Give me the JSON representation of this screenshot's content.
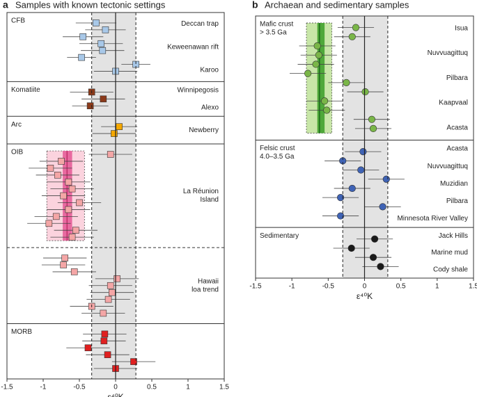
{
  "chart_data": [
    {
      "type": "dotplot",
      "panel": "a",
      "title": "Samples with known tectonic settings",
      "xlabel": "ε⁴⁰K",
      "xlim": [
        -1.5,
        1.5
      ],
      "xticks": [
        -1.5,
        -1,
        -0.5,
        0,
        0.5,
        1,
        1.5
      ],
      "marker": "square",
      "band": [
        -0.33,
        0.28
      ],
      "band_color": "#e3e3e3",
      "groups": [
        {
          "label": [
            "CFB"
          ],
          "color": "#a8c8e8",
          "names": [
            [
              "Deccan trap"
            ],
            [
              "Keweenawan rift"
            ],
            [
              "Karoo"
            ]
          ],
          "points": [
            {
              "x": -0.27,
              "err": 0.28
            },
            {
              "x": -0.14,
              "err": 0.28
            },
            {
              "x": -0.45,
              "err": 0.28
            },
            {
              "x": -0.2,
              "err": 0.3
            },
            {
              "x": -0.18,
              "err": 0.3
            },
            {
              "x": -0.47,
              "err": 0.2
            },
            {
              "x": 0.28,
              "err": 0.2
            },
            {
              "x": 0.0,
              "err": 0.3
            }
          ]
        },
        {
          "label": [
            "Komatiite"
          ],
          "color": "#8b3a1a",
          "names": [
            [
              "Winnipegosis"
            ],
            [
              "Alexo"
            ]
          ],
          "points": [
            {
              "x": -0.33,
              "err": 0.3
            },
            {
              "x": -0.17,
              "err": 0.3
            },
            {
              "x": -0.35,
              "err": 0.25
            }
          ]
        },
        {
          "label": [
            "Arc"
          ],
          "color": "#f5a800",
          "names": [
            [
              "Newberry"
            ]
          ],
          "points": [
            {
              "x": 0.05,
              "err": 0.25
            },
            {
              "x": -0.02,
              "err": 0.3
            }
          ]
        },
        {
          "label": [
            "OIB"
          ],
          "color": "#f4a6a6",
          "names": [
            [
              "La Réunion",
              "Island"
            ]
          ],
          "mean_band": {
            "lo": -0.95,
            "hi": -0.43,
            "inner_lo": -0.73,
            "inner_hi": -0.6,
            "mean": -0.67,
            "light": "#fbd3de",
            "dark": "#e86aa0",
            "line": "#c0306a"
          },
          "points": [
            {
              "x": -0.07,
              "err": 0.3
            },
            {
              "x": -0.75,
              "err": 0.3
            },
            {
              "x": -0.9,
              "err": 0.3
            },
            {
              "x": -0.8,
              "err": 0.3
            },
            {
              "x": -0.65,
              "err": 0.3
            },
            {
              "x": -0.6,
              "err": 0.3
            },
            {
              "x": -0.72,
              "err": 0.3
            },
            {
              "x": -0.5,
              "err": 0.3
            },
            {
              "x": -0.65,
              "err": 0.3
            },
            {
              "x": -0.82,
              "err": 0.3
            },
            {
              "x": -0.92,
              "err": 0.3
            },
            {
              "x": -0.55,
              "err": 0.3
            },
            {
              "x": -0.6,
              "err": 0.3
            }
          ]
        },
        {
          "dashed_top": true,
          "color": "#f4a6a6",
          "names": [
            [
              "Hawaii",
              "loa trend"
            ]
          ],
          "points": [
            {
              "x": -0.7,
              "err": 0.3
            },
            {
              "x": -0.72,
              "err": 0.3
            },
            {
              "x": -0.57,
              "err": 0.3
            },
            {
              "x": 0.02,
              "err": 0.3
            },
            {
              "x": -0.07,
              "err": 0.3
            },
            {
              "x": -0.05,
              "err": 0.3
            },
            {
              "x": -0.1,
              "err": 0.3
            },
            {
              "x": -0.33,
              "err": 0.3
            },
            {
              "x": -0.17,
              "err": 0.3
            }
          ]
        },
        {
          "label": [
            "MORB"
          ],
          "color": "#e02020",
          "names": [],
          "points": [
            {
              "x": -0.15,
              "err": 0.3
            },
            {
              "x": -0.16,
              "err": 0.3
            },
            {
              "x": -0.38,
              "err": 0.3
            },
            {
              "x": -0.11,
              "err": 0.3
            },
            {
              "x": 0.25,
              "err": 0.3
            },
            {
              "x": 0.0,
              "err": 0.3
            }
          ]
        }
      ]
    },
    {
      "type": "dotplot",
      "panel": "b",
      "title": "Archaean and sedimentary samples",
      "xlabel": "ε⁴⁰K",
      "xlim": [
        -1.5,
        1.5
      ],
      "xticks": [
        -1.5,
        -1,
        -0.5,
        0,
        0.5,
        1,
        1.5
      ],
      "marker": "circle",
      "band": [
        -0.3,
        0.32
      ],
      "band_color": "#e3e3e3",
      "groups": [
        {
          "label": [
            "Mafic crust",
            "> 3.5 Ga"
          ],
          "color": "#7ab648",
          "names": [
            [
              "Isua"
            ],
            [
              "Nuvvuagittuq"
            ],
            [
              "Pilbara"
            ],
            [
              "Kaapvaal"
            ],
            [
              "Acasta"
            ]
          ],
          "mean_band": {
            "lo": -0.8,
            "hi": -0.45,
            "inner_lo": -0.65,
            "inner_hi": -0.55,
            "mean": -0.62,
            "light": "#c8e6a8",
            "dark": "#4fa83a",
            "line": "#1d6b1d"
          },
          "points": [
            {
              "x": -0.12,
              "err": 0.25
            },
            {
              "x": -0.17,
              "err": 0.25
            },
            {
              "x": -0.65,
              "err": 0.25
            },
            {
              "x": -0.63,
              "err": 0.25
            },
            {
              "x": -0.67,
              "err": 0.25
            },
            {
              "x": -0.78,
              "err": 0.25
            },
            {
              "x": -0.25,
              "err": 0.25
            },
            {
              "x": 0.01,
              "err": 0.25
            },
            {
              "x": -0.55,
              "err": 0.25
            },
            {
              "x": -0.52,
              "err": 0.25
            },
            {
              "x": 0.1,
              "err": 0.25
            },
            {
              "x": 0.12,
              "err": 0.25
            }
          ]
        },
        {
          "label": [
            "Felsic crust",
            "4.0–3.5 Ga"
          ],
          "color": "#3f63b5",
          "names": [
            [
              "Acasta"
            ],
            [
              "Nuvvuagittuq"
            ],
            [
              "Muzidian"
            ],
            [
              "Pilbara"
            ],
            [
              "Minnesota River Valley"
            ]
          ],
          "points": [
            {
              "x": -0.02,
              "err": 0.25
            },
            {
              "x": -0.3,
              "err": 0.25
            },
            {
              "x": -0.05,
              "err": 0.25
            },
            {
              "x": 0.3,
              "err": 0.25
            },
            {
              "x": -0.17,
              "err": 0.25
            },
            {
              "x": -0.33,
              "err": 0.25
            },
            {
              "x": 0.25,
              "err": 0.25
            },
            {
              "x": -0.33,
              "err": 0.25
            }
          ]
        },
        {
          "label": [
            "Sedimentary"
          ],
          "color": "#1a1a1a",
          "names": [
            [
              "Jack Hills"
            ],
            [
              "Marine mud"
            ],
            [
              "Cody shale"
            ]
          ],
          "points": [
            {
              "x": 0.14,
              "err": 0.25
            },
            {
              "x": -0.18,
              "err": 0.25
            },
            {
              "x": 0.12,
              "err": 0.25
            },
            {
              "x": 0.22,
              "err": 0.25
            }
          ]
        }
      ]
    }
  ]
}
